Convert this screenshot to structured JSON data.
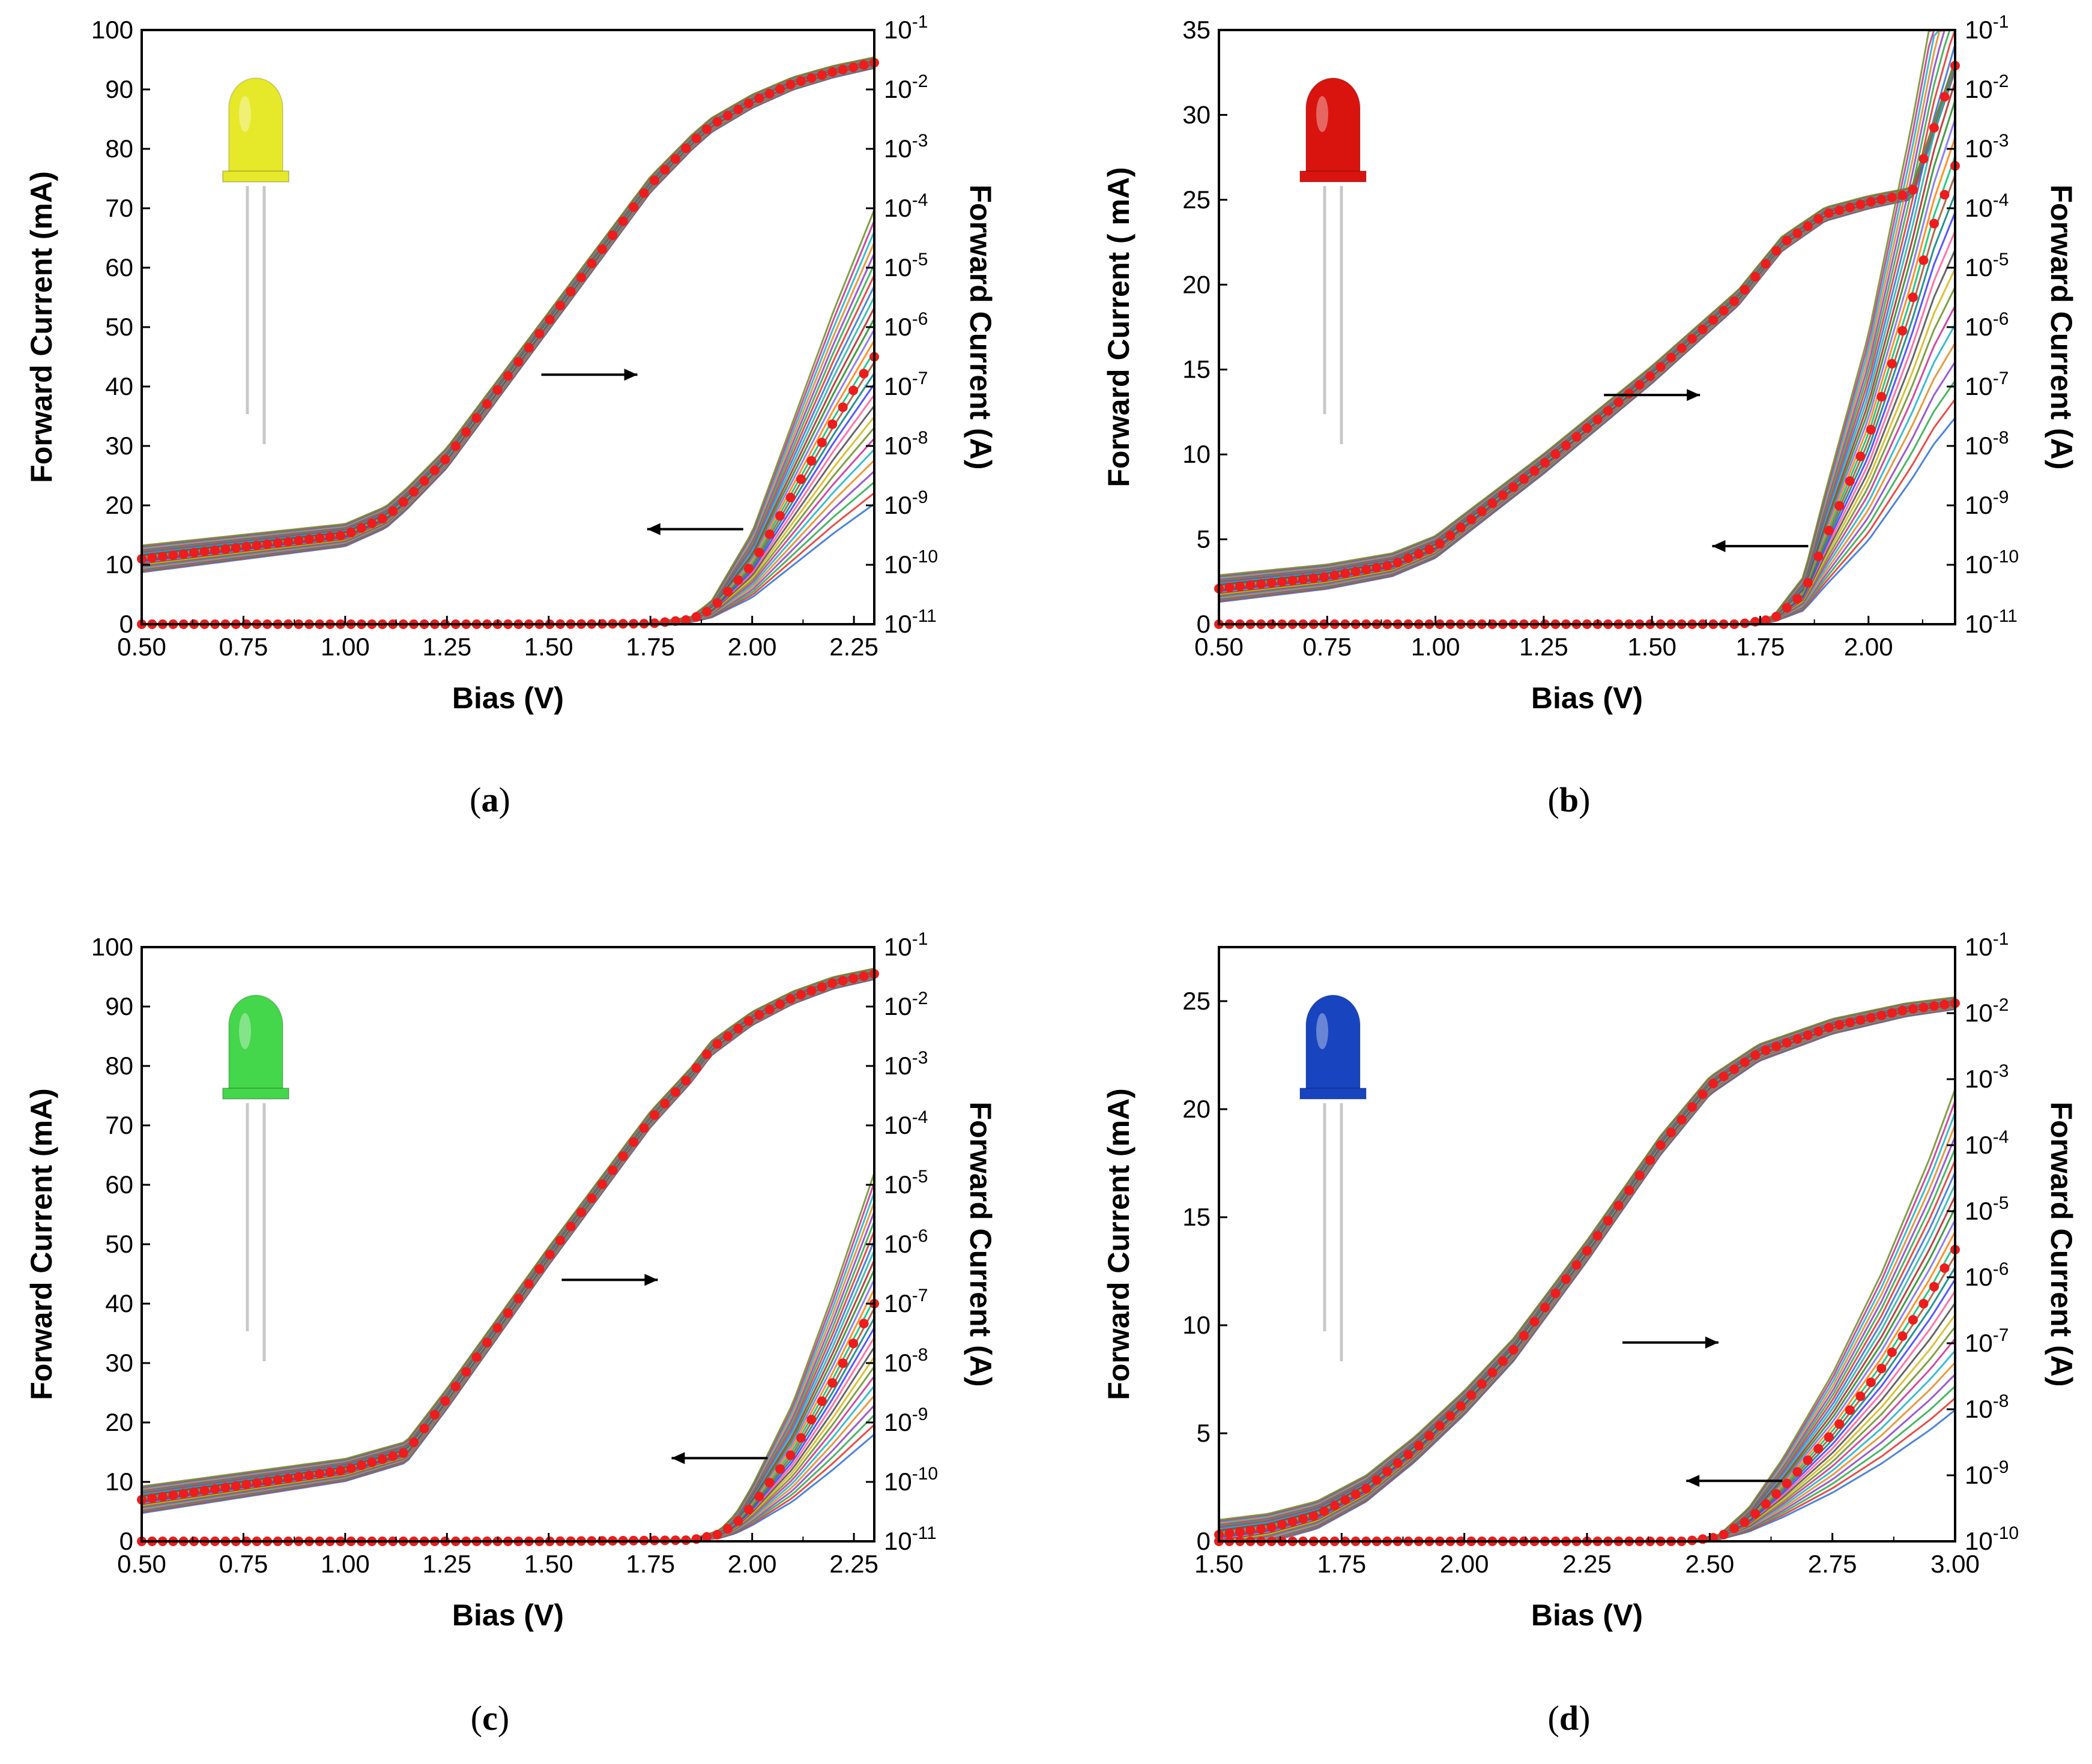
{
  "figure": {
    "colors": {
      "marker": "#ee1c1c",
      "axis": "#000000",
      "arrow": "#000000"
    }
  },
  "chart_data": [
    {
      "type": "line",
      "panel_label": "a",
      "led_color": "yellow",
      "led_hex": "#e6e82a",
      "xlabel": "Bias (V)",
      "ylabel_left": "Forward Current (mA)",
      "ylabel_right": "Forward Current (A)",
      "xlim": [
        0.5,
        2.3
      ],
      "x_ticks": [
        "0.50",
        "0.75",
        "1.00",
        "1.25",
        "1.50",
        "1.75",
        "2.00",
        "2.25"
      ],
      "x_tick_values": [
        0.5,
        0.75,
        1.0,
        1.25,
        1.5,
        1.75,
        2.0,
        2.25
      ],
      "ylim_left": [
        0,
        100
      ],
      "y_ticks_left": [
        "0",
        "10",
        "20",
        "30",
        "40",
        "50",
        "60",
        "70",
        "80",
        "90",
        "100"
      ],
      "y_tick_values_left": [
        0,
        10,
        20,
        30,
        40,
        50,
        60,
        70,
        80,
        90,
        100
      ],
      "ylim_right_log": [
        -11,
        -1
      ],
      "y_ticks_right_exp": [
        "-11",
        "-10",
        "-9",
        "-8",
        "-7",
        "-6",
        "-5",
        "-4",
        "-3",
        "-2",
        "-1"
      ],
      "right_tick_base": "10",
      "linear_series": {
        "name": "Forward current (mA)",
        "x": [
          0.5,
          0.75,
          1.0,
          1.1,
          1.15,
          1.25,
          1.5,
          1.75,
          1.85,
          1.9,
          2.0,
          2.1,
          2.2,
          2.3
        ],
        "y": [
          0,
          0,
          0,
          0,
          0,
          0,
          0,
          0.1,
          0.8,
          2.5,
          10,
          22,
          34,
          45
        ]
      },
      "log_series": {
        "name": "Forward current (A), log10",
        "x": [
          0.5,
          0.75,
          1.0,
          1.1,
          1.15,
          1.25,
          1.5,
          1.75,
          1.85,
          1.9,
          2.0,
          2.1,
          2.2,
          2.3
        ],
        "y": [
          -9.9,
          -9.7,
          -9.5,
          -9.2,
          -8.9,
          -8.2,
          -5.9,
          -3.6,
          -2.9,
          -2.6,
          -2.2,
          -1.9,
          -1.7,
          -1.55
        ]
      },
      "arrow_to_right": {
        "at_x": 1.6,
        "at_y": 42
      },
      "arrow_to_left": {
        "at_x": 1.86,
        "at_y": 16
      }
    },
    {
      "type": "line",
      "panel_label": "b",
      "led_color": "red",
      "led_hex": "#d9140f",
      "xlabel": "Bias (V)",
      "ylabel_left": "Forward Current ( mA)",
      "ylabel_right": "Forward Current (A)",
      "xlim": [
        0.5,
        2.2
      ],
      "x_ticks": [
        "0.50",
        "0.75",
        "1.00",
        "1.25",
        "1.50",
        "1.75",
        "2.00"
      ],
      "x_tick_values": [
        0.5,
        0.75,
        1.0,
        1.25,
        1.5,
        1.75,
        2.0
      ],
      "ylim_left": [
        0,
        35
      ],
      "y_ticks_left": [
        "0",
        "5",
        "10",
        "15",
        "20",
        "25",
        "30",
        "35"
      ],
      "y_tick_values_left": [
        0,
        5,
        10,
        15,
        20,
        25,
        30,
        35
      ],
      "ylim_right_log": [
        -11,
        -1
      ],
      "y_ticks_right_exp": [
        "-11",
        "-10",
        "-9",
        "-8",
        "-7",
        "-6",
        "-5",
        "-4",
        "-3",
        "-2",
        "-1"
      ],
      "right_tick_base": "10",
      "linear_series": {
        "name": "Forward current (mA)",
        "x": [
          0.5,
          0.75,
          1.0,
          1.5,
          1.7,
          1.78,
          1.85,
          1.9,
          2.0,
          2.1,
          2.15,
          2.2
        ],
        "y": [
          0,
          0,
          0,
          0,
          0,
          0.3,
          1.8,
          5,
          11,
          19,
          23.5,
          27
        ]
      },
      "log_series": {
        "name": "Forward current (A), log10",
        "x": [
          0.5,
          0.75,
          0.9,
          1.0,
          1.25,
          1.5,
          1.7,
          1.8,
          1.9,
          2.0,
          2.1,
          2.2
        ],
        "y": [
          -10.4,
          -10.2,
          -10.0,
          -9.7,
          -8.3,
          -6.8,
          -5.5,
          -4.6,
          -4.1,
          -3.9,
          -3.75,
          -1.6
        ]
      },
      "arrow_to_right": {
        "at_x": 1.5,
        "at_y": 13.5
      },
      "arrow_to_left": {
        "at_x": 1.75,
        "at_y": 4.6
      }
    },
    {
      "type": "line",
      "panel_label": "c",
      "led_color": "green",
      "led_hex": "#44d64b",
      "xlabel": "Bias (V)",
      "ylabel_left": "Forward Current (mA)",
      "ylabel_right": "Forward Current (A)",
      "xlim": [
        0.5,
        2.3
      ],
      "x_ticks": [
        "0.50",
        "0.75",
        "1.00",
        "1.25",
        "1.50",
        "1.75",
        "2.00",
        "2.25"
      ],
      "x_tick_values": [
        0.5,
        0.75,
        1.0,
        1.25,
        1.5,
        1.75,
        2.0,
        2.25
      ],
      "ylim_left": [
        0,
        100
      ],
      "y_ticks_left": [
        "0",
        "10",
        "20",
        "30",
        "40",
        "50",
        "60",
        "70",
        "80",
        "90",
        "100"
      ],
      "y_tick_values_left": [
        0,
        10,
        20,
        30,
        40,
        50,
        60,
        70,
        80,
        90,
        100
      ],
      "ylim_right_log": [
        -11,
        -1
      ],
      "y_ticks_right_exp": [
        "-11",
        "-10",
        "-9",
        "-8",
        "-7",
        "-6",
        "-5",
        "-4",
        "-3",
        "-2",
        "-1"
      ],
      "right_tick_base": "10",
      "linear_series": {
        "name": "Forward current (mA)",
        "x": [
          0.5,
          0.75,
          1.0,
          1.5,
          1.85,
          1.92,
          1.96,
          2.0,
          2.1,
          2.2,
          2.3
        ],
        "y": [
          0,
          0,
          0,
          0,
          0.2,
          1.2,
          3,
          6,
          15,
          27,
          40
        ]
      },
      "log_series": {
        "name": "Forward current (A), log10",
        "x": [
          0.5,
          0.75,
          1.0,
          1.1,
          1.15,
          1.25,
          1.5,
          1.75,
          1.85,
          1.9,
          2.0,
          2.1,
          2.2,
          2.3
        ],
        "y": [
          -10.3,
          -10.05,
          -9.8,
          -9.6,
          -9.5,
          -8.6,
          -6.2,
          -3.9,
          -3.15,
          -2.7,
          -2.2,
          -1.85,
          -1.6,
          -1.45
        ]
      },
      "arrow_to_right": {
        "at_x": 1.65,
        "at_y": 44
      },
      "arrow_to_left": {
        "at_x": 1.92,
        "at_y": 14
      }
    },
    {
      "type": "line",
      "panel_label": "d",
      "led_color": "blue",
      "led_hex": "#1844c0",
      "xlabel": "Bias (V)",
      "ylabel_left": "Forward Current (mA)",
      "ylabel_right": "Forward Current (A)",
      "xlim": [
        1.5,
        3.0
      ],
      "x_ticks": [
        "1.50",
        "1.75",
        "2.00",
        "2.25",
        "2.50",
        "2.75",
        "3.00"
      ],
      "x_tick_values": [
        1.5,
        1.75,
        2.0,
        2.25,
        2.5,
        2.75,
        3.0
      ],
      "ylim_left": [
        0,
        27.5
      ],
      "y_ticks_left": [
        "0",
        "5",
        "10",
        "15",
        "20",
        "25"
      ],
      "y_tick_values_left": [
        0,
        5,
        10,
        15,
        20,
        25
      ],
      "ylim_right_log": [
        -10,
        -1
      ],
      "y_ticks_right_exp": [
        "-10",
        "-9",
        "-8",
        "-7",
        "-6",
        "-5",
        "-4",
        "-3",
        "-2",
        "-1"
      ],
      "right_tick_base": "10",
      "linear_series": {
        "name": "Forward current (mA)",
        "x": [
          1.5,
          2.0,
          2.45,
          2.52,
          2.58,
          2.65,
          2.75,
          2.85,
          2.95,
          3.0
        ],
        "y": [
          0,
          0,
          0,
          0.2,
          1.0,
          2.5,
          5,
          8,
          11.5,
          13.5
        ]
      },
      "log_series": {
        "name": "Forward current (A), log10",
        "x": [
          1.5,
          1.6,
          1.7,
          1.8,
          1.9,
          2.0,
          2.1,
          2.25,
          2.4,
          2.5,
          2.6,
          2.75,
          2.9,
          3.0
        ],
        "y": [
          -9.9,
          -9.8,
          -9.6,
          -9.2,
          -8.6,
          -7.9,
          -7.1,
          -5.6,
          -4.0,
          -3.1,
          -2.6,
          -2.2,
          -1.95,
          -1.85
        ]
      },
      "arrow_to_right": {
        "at_x": 2.42,
        "at_y": 9.2
      },
      "arrow_to_left": {
        "at_x": 2.55,
        "at_y": 2.8
      }
    }
  ]
}
